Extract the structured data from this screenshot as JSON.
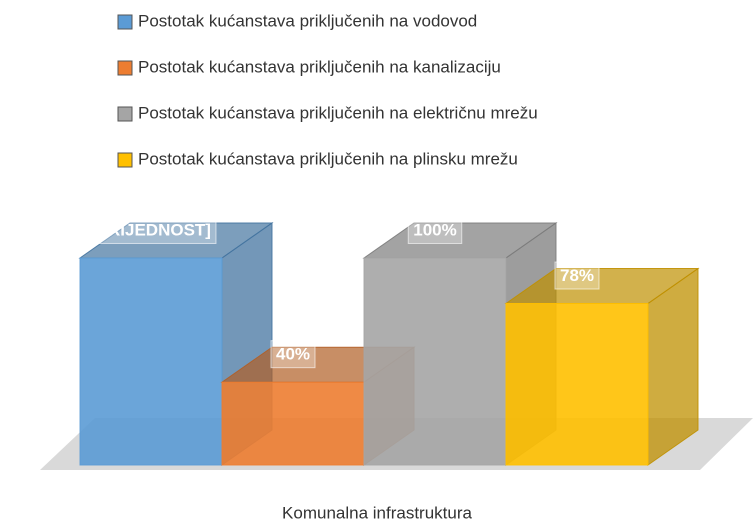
{
  "chart_data": {
    "type": "bar3d",
    "categories": [
      "Komunalna infrastruktura"
    ],
    "series": [
      {
        "name": "Postotak kućanstava priključenih na vodovod",
        "color": "#5b9bd5",
        "values": [
          100
        ],
        "value_labels": [
          "[VRIJEDNOST]"
        ]
      },
      {
        "name": "Postotak  kućanstava priključenih na kanalizaciju",
        "color": "#ed7d31",
        "values": [
          40
        ],
        "value_labels": [
          "40%"
        ]
      },
      {
        "name": "Postotak  kućanstava priključenih na električnu mrežu",
        "color": "#a5a5a5",
        "values": [
          100
        ],
        "value_labels": [
          "100%"
        ]
      },
      {
        "name": "Postotak  kućanstava priključenih na plinsku mrežu",
        "color": "#ffc000",
        "values": [
          78
        ],
        "value_labels": [
          "78%"
        ]
      }
    ],
    "legend": "top"
  }
}
